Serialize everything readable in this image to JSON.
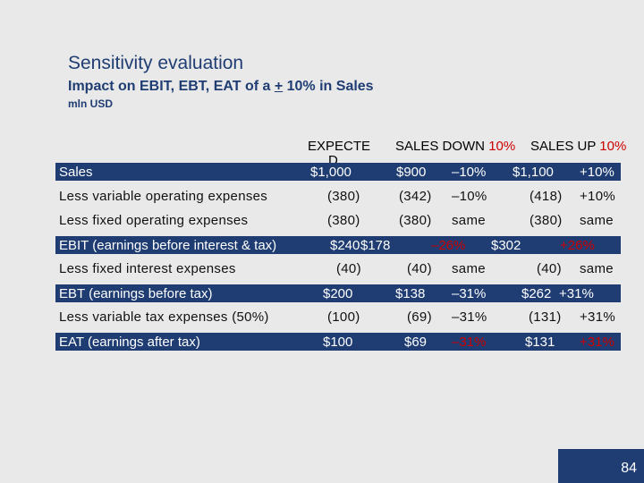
{
  "title": "Sensitivity evaluation",
  "subtitle_pre": "Impact on EBIT, EBT, EAT of a ",
  "subtitle_pm": "+",
  "subtitle_post": " 10% in Sales",
  "unit": "mln USD",
  "headers": {
    "expected_line1": "EXPECTE",
    "expected_line2": "D",
    "down_text": "SALES DOWN ",
    "down_pct": "10%",
    "up_text": "SALES UP ",
    "up_pct": "10%"
  },
  "rows": [
    {
      "label": "Sales",
      "expected": "$1,000",
      "down": "$900",
      "down_pct": "–10%",
      "up": "$1,100",
      "up_pct": "+10%"
    },
    {
      "label": "Less variable operating expenses",
      "expected": "(380)",
      "down": "(342)",
      "down_pct": "–10%",
      "up": "(418)",
      "up_pct": "+10%"
    },
    {
      "label": "Less fixed operating expenses",
      "expected": "(380)",
      "down": "(380)",
      "down_pct": "same",
      "up": "(380)",
      "up_pct": "same"
    },
    {
      "label": "EBIT (earnings before interest & tax)",
      "expected": "$240",
      "down": "$178",
      "down_pct": "–26%",
      "up": "$302",
      "up_pct": "+26%"
    },
    {
      "label": "Less fixed interest expenses",
      "expected": "(40)",
      "down": "(40)",
      "down_pct": "same",
      "up": "(40)",
      "up_pct": "same"
    },
    {
      "label": "EBT (earnings before tax)",
      "expected": "$200",
      "down": "$138",
      "down_pct": "–31%",
      "up": "$262",
      "up_pct": "+31%"
    },
    {
      "label": "Less variable tax expenses (50%)",
      "expected": "(100)",
      "down": "(69)",
      "down_pct": "–31%",
      "up": "(131)",
      "up_pct": "+31%"
    },
    {
      "label": "EAT (earnings after tax)",
      "expected": "$100",
      "down": "$69",
      "down_pct": "–31%",
      "up": "$131",
      "up_pct": "+31%"
    }
  ],
  "page_number": "84",
  "colors": {
    "accent": "#1f3d73",
    "negative": "#cc0000",
    "background": "#e9e9e9"
  }
}
